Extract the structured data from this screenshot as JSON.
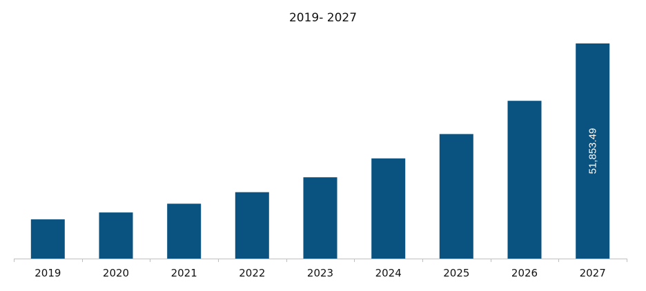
{
  "chart_data": {
    "type": "bar",
    "title": "2019- 2027",
    "xlabel": "",
    "ylabel": "",
    "categories": [
      "2019",
      "2020",
      "2021",
      "2022",
      "2023",
      "2024",
      "2025",
      "2026",
      "2027"
    ],
    "values": [
      9460,
      11120,
      13230,
      16010,
      19600,
      24150,
      30020,
      38020,
      51853.49
    ],
    "data_labels": [
      "",
      "",
      "",
      "",
      "",
      "",
      "",
      "",
      "51,853.49"
    ],
    "ylim": [
      0,
      52000
    ],
    "grid": false,
    "legend": "none",
    "bar_color": "#0a5280",
    "axis_color": "#bfbfbf"
  }
}
